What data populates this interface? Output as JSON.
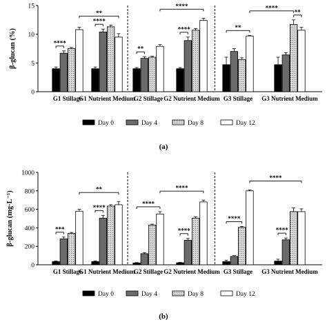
{
  "chart_data": [
    {
      "type": "bar",
      "panel_label": "(a)",
      "ylabel": "β-glucan (%)",
      "ylim": [
        0,
        15
      ],
      "yticks": [
        0,
        5,
        10,
        15
      ],
      "categories": [
        "G1 Stillage",
        "G1 Nutrient Medium",
        "G2 Stillage",
        "G2 Nutrient Medium",
        "G3 Stillage",
        "G3 Nutrient Medium"
      ],
      "series": [
        {
          "name": "Day 0",
          "color": "#000000",
          "pattern": "solid",
          "values": [
            4.0,
            4.0,
            4.0,
            4.0,
            4.7,
            4.7
          ],
          "errors": [
            0.3,
            0.3,
            0.2,
            0.2,
            1.3,
            1.3
          ]
        },
        {
          "name": "Day 4",
          "color": "#6b6b6b",
          "pattern": "solid",
          "values": [
            6.7,
            10.4,
            5.8,
            8.9,
            7.0,
            6.4
          ],
          "errors": [
            0.4,
            0.5,
            0.3,
            0.6,
            0.5,
            0.4
          ]
        },
        {
          "name": "Day 8",
          "color": "#c8c8c8",
          "pattern": "dotted",
          "values": [
            7.5,
            11.3,
            6.0,
            10.7,
            5.6,
            11.7
          ],
          "errors": [
            0.2,
            0.3,
            0.2,
            0.3,
            0.3,
            0.8
          ]
        },
        {
          "name": "Day 12",
          "color": "#ffffff",
          "pattern": "solid",
          "values": [
            10.8,
            9.5,
            7.9,
            12.4,
            9.7,
            10.7
          ],
          "errors": [
            0.4,
            0.6,
            0.3,
            0.4,
            0.1,
            0.5
          ]
        }
      ],
      "annotations": [
        {
          "text": "****",
          "group": 0,
          "from": 0,
          "to": 1
        },
        {
          "text": "**",
          "group_from": 0,
          "group_to": 1,
          "from": 3,
          "to": 3
        },
        {
          "text": "****",
          "group": 1,
          "from": 0,
          "to": 1
        },
        {
          "text": "**",
          "group": 2,
          "from": 0,
          "to": 1
        },
        {
          "text": "****",
          "group": 3,
          "from": 0,
          "to": 1
        },
        {
          "text": "****",
          "group_from": 2,
          "group_to": 3,
          "from": 3,
          "to": 3
        },
        {
          "text": "**",
          "group": 4,
          "from": 0,
          "to": 3
        },
        {
          "text": "**",
          "group": 5,
          "from": 2,
          "to": 3
        },
        {
          "text": "****",
          "group_from": 4,
          "group_to": 5,
          "from": 3,
          "to": 2
        }
      ],
      "separators_after_group": [
        1,
        3
      ],
      "legend": [
        "Day 0",
        "Day 4",
        "Day 8",
        "Day 12"
      ],
      "legend_position": "bottom"
    },
    {
      "type": "bar",
      "panel_label": "(b)",
      "ylabel": "β-glucan (mg·L⁻¹)",
      "ylim": [
        0,
        1000
      ],
      "yticks": [
        0,
        200,
        400,
        600,
        800,
        1000
      ],
      "categories": [
        "G1 Stillage",
        "G1 Nutrient Medium",
        "G2 Stillage",
        "G2 Nutrient Medium",
        "G3 Stillage",
        "G3 Nutrient Medium"
      ],
      "series": [
        {
          "name": "Day 0",
          "color": "#000000",
          "pattern": "solid",
          "values": [
            35,
            35,
            20,
            22,
            35,
            40
          ],
          "errors": [
            5,
            5,
            4,
            4,
            15,
            20
          ]
        },
        {
          "name": "Day 4",
          "color": "#6b6b6b",
          "pattern": "solid",
          "values": [
            280,
            505,
            120,
            265,
            90,
            270
          ],
          "errors": [
            20,
            30,
            10,
            20,
            10,
            20
          ]
        },
        {
          "name": "Day 8",
          "color": "#c8c8c8",
          "pattern": "dotted",
          "values": [
            340,
            635,
            430,
            505,
            405,
            575
          ],
          "errors": [
            10,
            15,
            10,
            15,
            10,
            40
          ]
        },
        {
          "name": "Day 12",
          "color": "#ffffff",
          "pattern": "solid",
          "values": [
            580,
            650,
            550,
            680,
            800,
            575
          ],
          "errors": [
            20,
            35,
            25,
            20,
            10,
            30
          ]
        }
      ],
      "annotations": [
        {
          "text": "***",
          "group": 0,
          "from": 0,
          "to": 1
        },
        {
          "text": "**",
          "group_from": 0,
          "group_to": 1,
          "from": 3,
          "to": 3
        },
        {
          "text": "****",
          "group": 1,
          "from": 0,
          "to": 1
        },
        {
          "text": "****",
          "group": 2,
          "from": 0,
          "to": 3
        },
        {
          "text": "****",
          "group": 3,
          "from": 0,
          "to": 1
        },
        {
          "text": "****",
          "group_from": 2,
          "group_to": 3,
          "from": 3,
          "to": 3
        },
        {
          "text": "****",
          "group": 4,
          "from": 0,
          "to": 2
        },
        {
          "text": "****",
          "group": 5,
          "from": 0,
          "to": 1
        },
        {
          "text": "****",
          "group_from": 4,
          "group_to": 5,
          "from": 3,
          "to": 3
        }
      ],
      "separators_after_group": [
        1,
        3
      ],
      "legend": [
        "Day 0",
        "Day 4",
        "Day 8",
        "Day 12"
      ],
      "legend_position": "bottom"
    }
  ]
}
